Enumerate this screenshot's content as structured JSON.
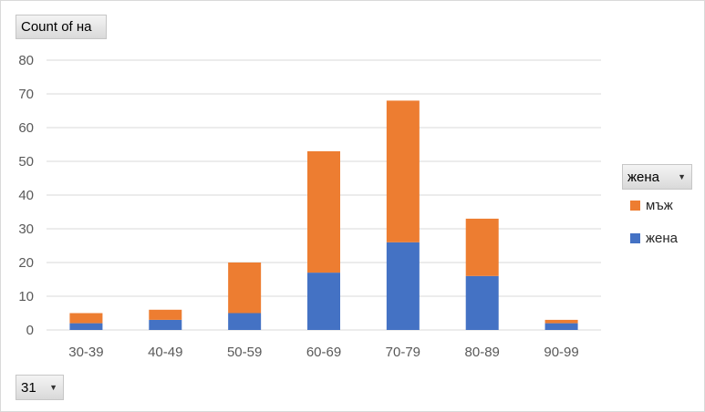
{
  "chart_data": {
    "type": "bar",
    "stacked": true,
    "categories": [
      "30-39",
      "40-49",
      "50-59",
      "60-69",
      "70-79",
      "80-89",
      "90-99"
    ],
    "series": [
      {
        "name": "жена",
        "color": "#4472c4",
        "values": [
          2,
          3,
          5,
          17,
          26,
          16,
          2
        ]
      },
      {
        "name": "мъж",
        "color": "#ed7d31",
        "values": [
          3,
          3,
          15,
          36,
          42,
          17,
          1
        ]
      }
    ],
    "ylim": [
      0,
      80
    ],
    "yticks": [
      0,
      10,
      20,
      30,
      40,
      50,
      60,
      70,
      80
    ],
    "grid": true,
    "legend_position": "right"
  },
  "pivot": {
    "values_field": "Count of на",
    "legend_field": "жена",
    "axis_field": "31"
  },
  "colors": {
    "gridline": "#d9d9d9",
    "axis_text": "#595959"
  },
  "icons": {
    "dropdown": "triangle-down-icon"
  }
}
